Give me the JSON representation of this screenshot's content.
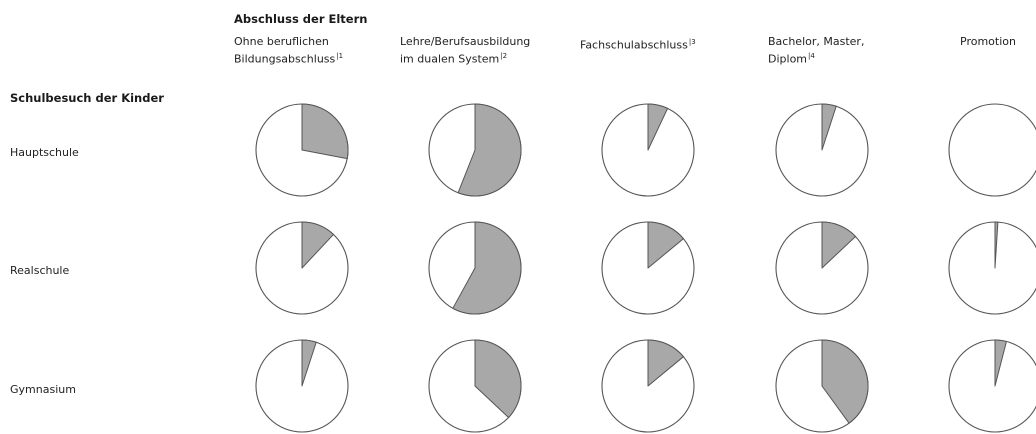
{
  "chart_data": {
    "type": "pie",
    "title": "",
    "parents_header": "Abschluss der Eltern",
    "children_header": "Schulbesuch der Kinder",
    "columns": [
      {
        "label_lines": [
          "Ohne beruflichen",
          "Bildungsabschluss"
        ],
        "footnote": "1"
      },
      {
        "label_lines": [
          "Lehre/Berufsausbildung",
          "im dualen System"
        ],
        "footnote": "2"
      },
      {
        "label_lines": [
          "Fachschulabschluss"
        ],
        "footnote": "3"
      },
      {
        "label_lines": [
          "Bachelor, Master,",
          "Diplom"
        ],
        "footnote": "4"
      },
      {
        "label_lines": [
          "Promotion"
        ],
        "footnote": ""
      }
    ],
    "rows": [
      "Hauptschule",
      "Realschule",
      "Gymnasium"
    ],
    "slice_fractions": [
      [
        0.28,
        0.56,
        0.07,
        0.05,
        0.0
      ],
      [
        0.12,
        0.58,
        0.14,
        0.13,
        0.01
      ],
      [
        0.05,
        0.37,
        0.14,
        0.4,
        0.04
      ]
    ],
    "colors": {
      "slice": "#a8a8a8",
      "outline": "#555555"
    }
  }
}
